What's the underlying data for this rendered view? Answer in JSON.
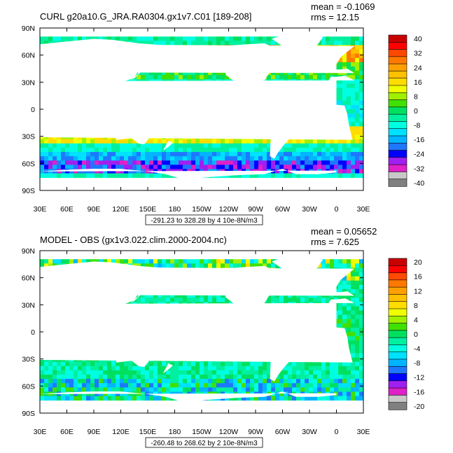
{
  "panels": [
    {
      "title": "CURL g20a10.G_JRA.RA0304.gx1v7.C01 [189-208]",
      "mean_text": "mean = -0.1069",
      "rms_text": "rms = 12.15",
      "range_text": "-291.23 to 328.28 by 4 10e-8N/m3",
      "colorbar_labels": [
        "40",
        "32",
        "24",
        "16",
        "8",
        "0",
        "-8",
        "-16",
        "-24",
        "-32",
        "-40"
      ],
      "colorbar_values": [
        40,
        32,
        24,
        16,
        8,
        0,
        -8,
        -16,
        -24,
        -32,
        -40
      ],
      "field_style": "curl"
    },
    {
      "title": "MODEL - OBS (gx1v3.022.clim.2000-2004.nc)",
      "mean_text": "mean = 0.05652",
      "rms_text": "rms = 7.625",
      "range_text": "-260.48 to 268.62 by 2 10e-8N/m3",
      "colorbar_labels": [
        "20",
        "16",
        "12",
        "8",
        "4",
        "0",
        "-4",
        "-8",
        "-12",
        "-16",
        "-20"
      ],
      "colorbar_values": [
        20,
        16,
        12,
        8,
        4,
        0,
        -4,
        -8,
        -12,
        -16,
        -20
      ],
      "field_style": "diff"
    }
  ],
  "x_ticks": [
    "30E",
    "60E",
    "90E",
    "120E",
    "150E",
    "180",
    "150W",
    "120W",
    "90W",
    "60W",
    "30W",
    "0",
    "30E"
  ],
  "y_ticks": [
    "90N",
    "60N",
    "30N",
    "0",
    "30S",
    "60S",
    "90S"
  ],
  "palette": [
    "#ffffff",
    "#c8c8c8",
    "#e020c8",
    "#a020f0",
    "#0000ff",
    "#1e78ff",
    "#00b4ff",
    "#00e0ff",
    "#00ffe0",
    "#00f0a0",
    "#00e060",
    "#40e000",
    "#a0f000",
    "#f0ff00",
    "#ffdc00",
    "#ffc000",
    "#ffa000",
    "#ff7800",
    "#ff4800",
    "#ff0000",
    "#c80000"
  ],
  "land_color": "#ffffff"
}
